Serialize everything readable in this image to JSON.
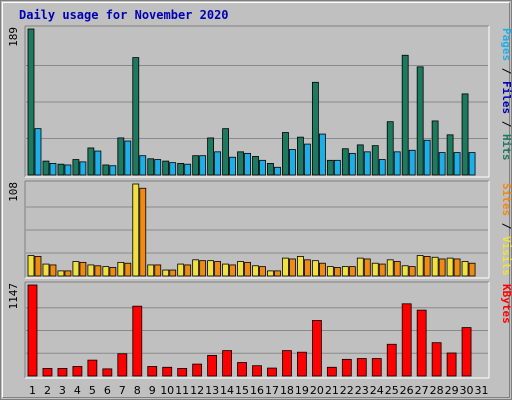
{
  "chart_data": {
    "type": "bar",
    "title": "Daily usage for November 2020",
    "categories": [
      "1",
      "2",
      "3",
      "4",
      "5",
      "6",
      "7",
      "8",
      "9",
      "10",
      "11",
      "12",
      "13",
      "14",
      "15",
      "16",
      "17",
      "18",
      "19",
      "20",
      "21",
      "22",
      "23",
      "24",
      "25",
      "26",
      "27",
      "28",
      "29",
      "30",
      "31"
    ],
    "weekend_days": [
      "1",
      "7",
      "8",
      "14",
      "15",
      "21",
      "22",
      "28",
      "29"
    ],
    "colors": {
      "hits": "#1d7a5e",
      "files": "#1cb0e8",
      "pages": "#1cb0e8",
      "sites": "#f08a10",
      "visits": "#f0e040",
      "kbytes": "#ff0000",
      "weekend_tick": "#1d7a5e",
      "weekday_tick": "#000000",
      "title": "#0000b4"
    },
    "panels": [
      {
        "id": "hits-panel",
        "max_label": "189",
        "ylim": [
          0,
          189
        ],
        "legend": [
          {
            "text": "Pages",
            "color": "#1cb0e8"
          },
          {
            "text": " / ",
            "color": "#000000"
          },
          {
            "text": "Files",
            "color": "#0000b4"
          },
          {
            "text": " / ",
            "color": "#000000"
          },
          {
            "text": "Hits",
            "color": "#1d7a5e"
          }
        ],
        "series": [
          {
            "name": "Hits",
            "color": "#1d7a5e",
            "values": [
              189,
              18,
              14,
              20,
              35,
              13,
              48,
              152,
              21,
              18,
              15,
              25,
              48,
              60,
              30,
              24,
              15,
              55,
              49,
              120,
              19,
              34,
              39,
              38,
              69,
              155,
              140,
              70,
              52,
              105,
              0
            ]
          },
          {
            "name": "Files",
            "color": "#1cb0e8",
            "values": [
              60,
              15,
              13,
              17,
              31,
              12,
              44,
              25,
              20,
              16,
              14,
              25,
              30,
              23,
              28,
              19,
              10,
              33,
              40,
              53,
              19,
              28,
              30,
              20,
              30,
              32,
              45,
              29,
              29,
              29,
              0
            ]
          }
        ]
      },
      {
        "id": "visits-panel",
        "max_label": "108",
        "ylim": [
          0,
          108
        ],
        "legend": [
          {
            "text": "Sites",
            "color": "#f08a10"
          },
          {
            "text": " / ",
            "color": "#000000"
          },
          {
            "text": "Visits",
            "color": "#f0e040"
          }
        ],
        "series": [
          {
            "name": "Visits",
            "color": "#f0e040",
            "values": [
              24,
              14,
              6,
              17,
              13,
              11,
              16,
              108,
              13,
              7,
              14,
              19,
              18,
              14,
              17,
              12,
              6,
              21,
              23,
              18,
              11,
              11,
              21,
              15,
              19,
              12,
              24,
              22,
              21,
              17,
              0
            ]
          },
          {
            "name": "Sites",
            "color": "#f08a10",
            "values": [
              23,
              13,
              6,
              16,
              12,
              10,
              15,
              103,
              13,
              7,
              13,
              18,
              17,
              13,
              16,
              11,
              6,
              20,
              19,
              15,
              10,
              11,
              20,
              14,
              17,
              11,
              23,
              20,
              20,
              15,
              0
            ]
          }
        ]
      },
      {
        "id": "kbytes-panel",
        "max_label": "1147",
        "ylim": [
          0,
          1147
        ],
        "legend": [
          {
            "text": "KBytes",
            "color": "#ff0000"
          }
        ],
        "series": [
          {
            "name": "KBytes",
            "color": "#ff0000",
            "values": [
              1147,
              95,
              95,
              120,
              200,
              90,
              280,
              880,
              120,
              110,
              95,
              150,
              260,
              320,
              170,
              130,
              100,
              320,
              300,
              700,
              110,
              210,
              220,
              220,
              400,
              910,
              830,
              420,
              290,
              610,
              0
            ]
          }
        ]
      }
    ]
  }
}
